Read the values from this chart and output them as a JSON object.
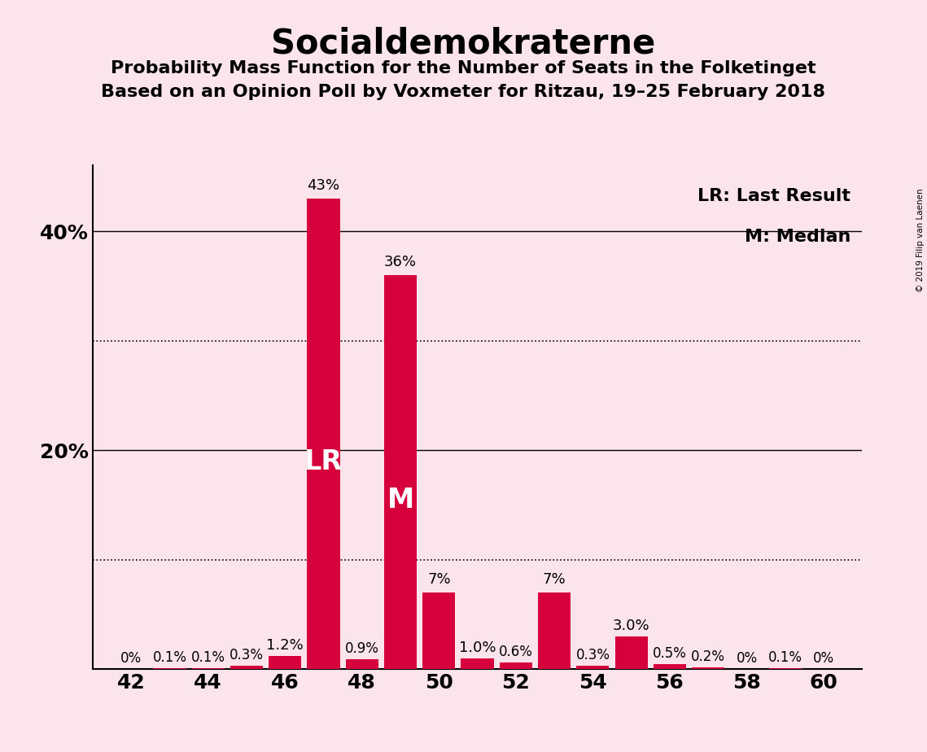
{
  "title": "Socialdemokraterne",
  "subtitle1": "Probability Mass Function for the Number of Seats in the Folketinget",
  "subtitle2": "Based on an Opinion Poll by Voxmeter for Ritzau, 19–25 February 2018",
  "copyright": "© 2019 Filip van Laenen",
  "legend_lr": "LR: Last Result",
  "legend_m": "M: Median",
  "seats": [
    42,
    43,
    44,
    45,
    46,
    47,
    48,
    49,
    50,
    51,
    52,
    53,
    54,
    55,
    56,
    57,
    58,
    59,
    60
  ],
  "probabilities": [
    0.0,
    0.1,
    0.1,
    0.3,
    1.2,
    43.0,
    0.9,
    36.0,
    7.0,
    1.0,
    0.6,
    7.0,
    0.3,
    3.0,
    0.5,
    0.2,
    0.0,
    0.1,
    0.0
  ],
  "bar_color": "#d5003c",
  "background_color": "#fce4ec",
  "lr_seat": 47,
  "median_seat": 49,
  "ylim": [
    0,
    46
  ],
  "yticks": [
    0,
    20,
    40
  ],
  "ytick_labels": [
    "",
    "20%",
    "40%"
  ],
  "dotted_yticks": [
    10,
    30
  ],
  "xtick_positions": [
    42,
    44,
    46,
    48,
    50,
    52,
    54,
    56,
    58,
    60
  ],
  "title_fontsize": 30,
  "subtitle_fontsize": 16,
  "label_fontsize": 13,
  "axis_fontsize": 18
}
